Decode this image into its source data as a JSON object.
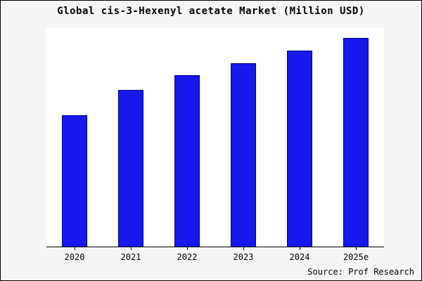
{
  "title": "Global cis-3-Hexenyl acetate Market (Million USD)",
  "source": "Source: Prof Research",
  "colors": {
    "bar_fill": "#1717ee",
    "bar_border": "#00008b",
    "frame_background": "#f5f5f5",
    "plot_background": "#ffffff",
    "axis": "#000000"
  },
  "chart_data": {
    "type": "bar",
    "title": "Global cis-3-Hexenyl acetate Market (Million USD)",
    "categories": [
      "2020",
      "2021",
      "2022",
      "2023",
      "2024",
      "2025e"
    ],
    "values": [
      63,
      75,
      82,
      88,
      94,
      100
    ],
    "xlabel": "",
    "ylabel": "",
    "ylim": [
      0,
      105
    ],
    "grid": false,
    "legend": false,
    "value_note": "No y-axis scale shown in source image; values are relative units estimated from bar heights (max bar = 100)."
  }
}
